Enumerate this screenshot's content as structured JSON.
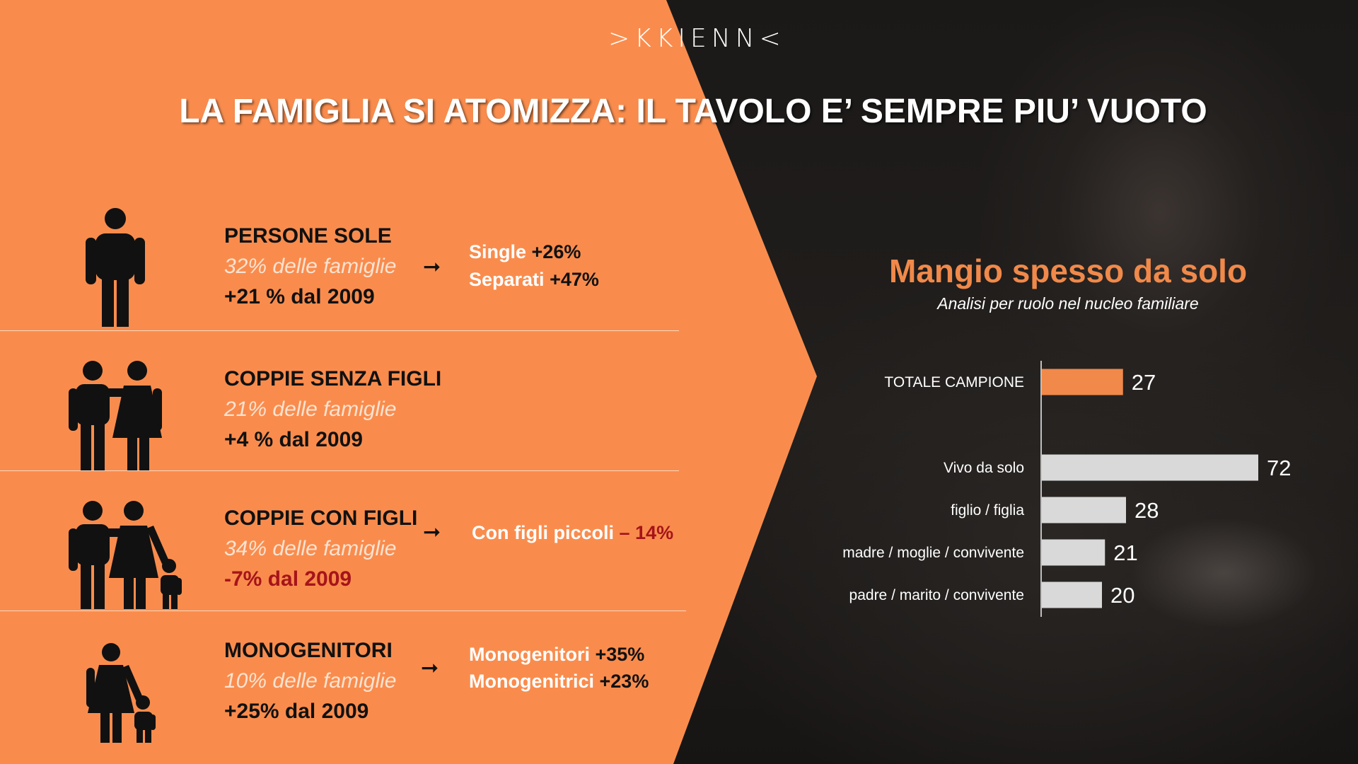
{
  "brand": {
    "logo_text": ">KKIENN<"
  },
  "title": "LA FAMIGLIA SI ATOMIZZA: IL TAVOLO E’ SEMPRE PIU’ VUOTO",
  "rows": [
    {
      "icon": "single-person-icon",
      "title": "PERSONE SOLE",
      "share": "32% delle famiglie",
      "change": "+21 % dal 2009",
      "change_negative": false,
      "details": [
        {
          "label": "Single",
          "value": "+26%"
        },
        {
          "label": "Separati",
          "value": "+47%"
        }
      ]
    },
    {
      "icon": "couple-icon",
      "title": "COPPIE SENZA FIGLI",
      "share": "21% delle famiglie",
      "change": "+4 % dal 2009",
      "change_negative": false,
      "details": []
    },
    {
      "icon": "couple-with-child-icon",
      "title": "COPPIE CON FIGLI",
      "share": "34% delle famiglie",
      "change": "-7% dal 2009",
      "change_negative": true,
      "details": [
        {
          "label": "Con figli piccoli",
          "value": "– 14%",
          "negative": true
        }
      ]
    },
    {
      "icon": "single-parent-icon",
      "title": "MONOGENITORI",
      "share": "10% delle famiglie",
      "change": "+25% dal 2009",
      "change_negative": false,
      "details": [
        {
          "label": "Monogenitori",
          "value": "+35%"
        },
        {
          "label": "Monogenitrici",
          "value": "+23%"
        }
      ]
    }
  ],
  "chart_data": {
    "type": "bar",
    "orientation": "horizontal",
    "title": "Mangio spesso da solo",
    "subtitle": "Analisi per ruolo nel nucleo familiare",
    "categories": [
      "TOTALE CAMPIONE",
      "Vivo da solo",
      "figlio / figlia",
      "madre / moglie / convivente",
      "padre / marito / convivente"
    ],
    "values": [
      27,
      72,
      28,
      21,
      20
    ],
    "highlight": "TOTALE CAMPIONE",
    "xlim": [
      0,
      72
    ],
    "grid": false,
    "legend": "none",
    "colors": {
      "highlight": "#f0894a",
      "bars": "#d9d9d9"
    }
  },
  "colors": {
    "orange": "#f98c4d",
    "dark": "#111111",
    "negative": "#a5141a",
    "share_text": "#fbe3d2"
  }
}
